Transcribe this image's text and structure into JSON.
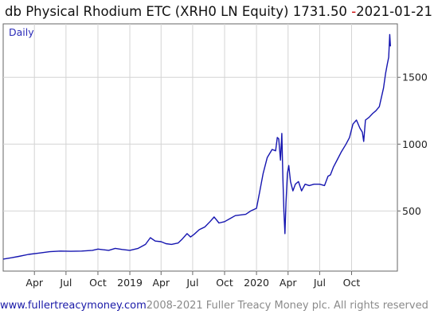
{
  "header": {
    "title": "db Physical Rhodium ETC (XRH0 LN Equity) 1731.50",
    "date_prefix": "-",
    "date": "2021-01-21"
  },
  "footer": {
    "site": "www.fullertreacymoney.com",
    "copyright": "2008-2021 Fuller Treacy Money plc. All rights reserved"
  },
  "colors": {
    "series": "#1515b0",
    "grid": "#d4d4d4",
    "axis": "#666666",
    "text": "#222222",
    "period": "#2a2ab8",
    "date_dash": "#cc0000"
  },
  "chart_data": {
    "type": "line",
    "period_label": "Daily",
    "y_axis_side": "right",
    "y_ticks": [
      500,
      1000,
      1500
    ],
    "ylim": [
      50,
      1900
    ],
    "xlim": [
      "2018-01-01",
      "2021-02-10"
    ],
    "grid": true,
    "x_ticks": [
      {
        "label": "Apr",
        "date": "2018-04-01"
      },
      {
        "label": "Jul",
        "date": "2018-07-01"
      },
      {
        "label": "Oct",
        "date": "2018-10-01"
      },
      {
        "label": "2019",
        "date": "2019-01-01"
      },
      {
        "label": "Apr",
        "date": "2019-04-01"
      },
      {
        "label": "Jul",
        "date": "2019-07-01"
      },
      {
        "label": "Oct",
        "date": "2019-10-01"
      },
      {
        "label": "2020",
        "date": "2020-01-01"
      },
      {
        "label": "Apr",
        "date": "2020-04-01"
      },
      {
        "label": "Jul",
        "date": "2020-07-01"
      },
      {
        "label": "Oct",
        "date": "2020-10-01"
      }
    ],
    "series": [
      {
        "values": [
          [
            "2018-01-01",
            140
          ],
          [
            "2018-01-25",
            150
          ],
          [
            "2018-02-15",
            160
          ],
          [
            "2018-03-15",
            175
          ],
          [
            "2018-04-15",
            185
          ],
          [
            "2018-05-15",
            195
          ],
          [
            "2018-06-15",
            200
          ],
          [
            "2018-07-15",
            198
          ],
          [
            "2018-08-15",
            200
          ],
          [
            "2018-09-15",
            205
          ],
          [
            "2018-10-01",
            215
          ],
          [
            "2018-10-15",
            210
          ],
          [
            "2018-11-01",
            205
          ],
          [
            "2018-11-20",
            220
          ],
          [
            "2018-12-10",
            212
          ],
          [
            "2019-01-01",
            205
          ],
          [
            "2019-01-25",
            220
          ],
          [
            "2019-02-15",
            250
          ],
          [
            "2019-03-01",
            300
          ],
          [
            "2019-03-15",
            275
          ],
          [
            "2019-04-01",
            270
          ],
          [
            "2019-04-15",
            255
          ],
          [
            "2019-05-01",
            250
          ],
          [
            "2019-05-20",
            260
          ],
          [
            "2019-06-01",
            290
          ],
          [
            "2019-06-15",
            330
          ],
          [
            "2019-06-25",
            305
          ],
          [
            "2019-07-05",
            325
          ],
          [
            "2019-07-20",
            360
          ],
          [
            "2019-08-05",
            380
          ],
          [
            "2019-08-20",
            420
          ],
          [
            "2019-09-01",
            455
          ],
          [
            "2019-09-15",
            410
          ],
          [
            "2019-10-01",
            420
          ],
          [
            "2019-10-15",
            440
          ],
          [
            "2019-11-01",
            465
          ],
          [
            "2019-11-15",
            470
          ],
          [
            "2019-12-01",
            475
          ],
          [
            "2019-12-15",
            500
          ],
          [
            "2020-01-01",
            520
          ],
          [
            "2020-01-10",
            640
          ],
          [
            "2020-01-20",
            780
          ],
          [
            "2020-02-01",
            900
          ],
          [
            "2020-02-15",
            960
          ],
          [
            "2020-02-25",
            950
          ],
          [
            "2020-03-01",
            1050
          ],
          [
            "2020-03-05",
            1040
          ],
          [
            "2020-03-10",
            880
          ],
          [
            "2020-03-14",
            1080
          ],
          [
            "2020-03-17",
            750
          ],
          [
            "2020-03-20",
            500
          ],
          [
            "2020-03-23",
            330
          ],
          [
            "2020-03-26",
            560
          ],
          [
            "2020-03-30",
            780
          ],
          [
            "2020-04-03",
            840
          ],
          [
            "2020-04-08",
            720
          ],
          [
            "2020-04-15",
            650
          ],
          [
            "2020-04-22",
            700
          ],
          [
            "2020-05-01",
            720
          ],
          [
            "2020-05-10",
            650
          ],
          [
            "2020-05-20",
            700
          ],
          [
            "2020-06-01",
            690
          ],
          [
            "2020-06-15",
            700
          ],
          [
            "2020-07-01",
            700
          ],
          [
            "2020-07-15",
            690
          ],
          [
            "2020-07-25",
            760
          ],
          [
            "2020-08-01",
            770
          ],
          [
            "2020-08-10",
            830
          ],
          [
            "2020-08-20",
            880
          ],
          [
            "2020-09-01",
            940
          ],
          [
            "2020-09-15",
            1000
          ],
          [
            "2020-09-25",
            1050
          ],
          [
            "2020-10-05",
            1150
          ],
          [
            "2020-10-15",
            1180
          ],
          [
            "2020-10-25",
            1120
          ],
          [
            "2020-11-01",
            1090
          ],
          [
            "2020-11-05",
            1020
          ],
          [
            "2020-11-10",
            1180
          ],
          [
            "2020-11-20",
            1200
          ],
          [
            "2020-12-01",
            1230
          ],
          [
            "2020-12-10",
            1250
          ],
          [
            "2020-12-20",
            1280
          ],
          [
            "2021-01-01",
            1420
          ],
          [
            "2021-01-07",
            1530
          ],
          [
            "2021-01-12",
            1600
          ],
          [
            "2021-01-16",
            1650
          ],
          [
            "2021-01-19",
            1820
          ],
          [
            "2021-01-21",
            1731.5
          ]
        ]
      }
    ]
  }
}
